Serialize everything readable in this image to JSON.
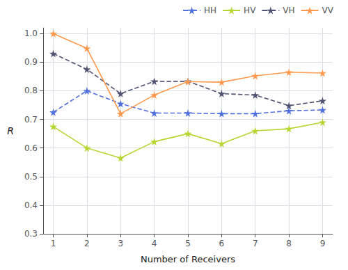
{
  "chart_data": {
    "type": "line",
    "xlabel": "Number of Receivers",
    "ylabel": "R",
    "x": [
      1,
      2,
      3,
      4,
      5,
      6,
      7,
      8,
      9
    ],
    "series": [
      {
        "name": "HH",
        "values": [
          0.725,
          0.8,
          0.755,
          0.722,
          0.722,
          0.72,
          0.72,
          0.73,
          0.733
        ],
        "line_style": "dashed",
        "marker": "star"
      },
      {
        "name": "HV",
        "values": [
          0.675,
          0.6,
          0.565,
          0.622,
          0.65,
          0.615,
          0.66,
          0.667,
          0.69
        ],
        "line_style": "solid",
        "marker": "star"
      },
      {
        "name": "VH",
        "values": [
          0.93,
          0.875,
          0.79,
          0.833,
          0.833,
          0.79,
          0.785,
          0.748,
          0.765
        ],
        "line_style": "dashed",
        "marker": "star"
      },
      {
        "name": "VV",
        "values": [
          1.0,
          0.948,
          0.72,
          0.785,
          0.832,
          0.83,
          0.852,
          0.865,
          0.862
        ],
        "line_style": "solid",
        "marker": "star"
      }
    ],
    "xlim": [
      0.7,
      9.3
    ],
    "xticks": [
      1,
      2,
      3,
      4,
      5,
      6,
      7,
      8,
      9
    ],
    "ylim": [
      0.3,
      1.02
    ],
    "yticks": [
      0.3,
      0.4,
      0.5,
      0.6,
      0.7,
      0.8,
      0.9,
      {
        "value": 1.0,
        "label": "1.0"
      }
    ],
    "grid": true,
    "legend": "upper right"
  }
}
